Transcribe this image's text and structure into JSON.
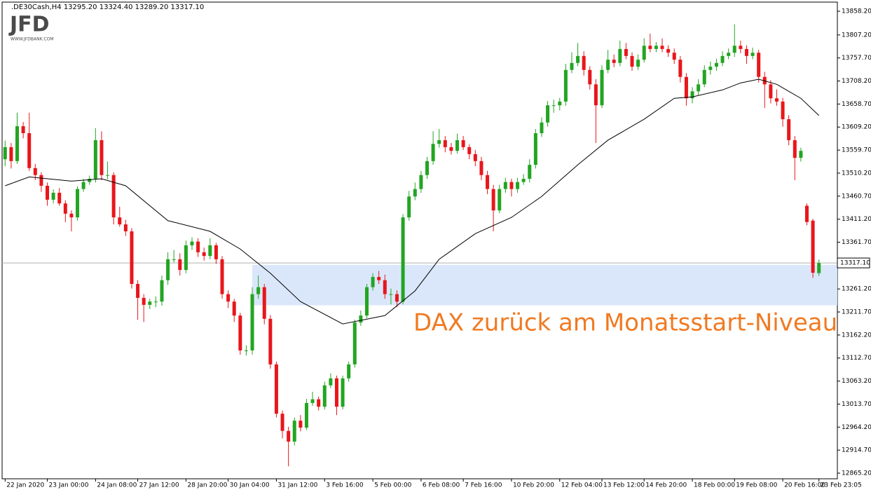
{
  "chart_data": {
    "type": "candlestick",
    "symbol_info": ".DE30Cash,H4  13295.20 13324.40 13289.20 13317.10",
    "logo": {
      "text": "JFD",
      "url": "WWW.JFDBANK.COM"
    },
    "annotation": "DAX zurück am Monatsstart-Niveau",
    "up_color": "#22a522",
    "down_color": "#e8161b",
    "ma_color": "#000000",
    "zone_color": "#d6e4fb",
    "annotation_color": "#f07a22",
    "grid": false,
    "ylim": [
      12853.1,
      13877.8
    ],
    "yticks": [
      {
        "value": 13858.2,
        "label": "13858.20"
      },
      {
        "value": 13807.2,
        "label": "13807.20"
      },
      {
        "value": 13757.7,
        "label": "13757.70"
      },
      {
        "value": 13708.2,
        "label": "13708.20"
      },
      {
        "value": 13658.7,
        "label": "13658.70"
      },
      {
        "value": 13609.2,
        "label": "13609.20"
      },
      {
        "value": 13559.7,
        "label": "13559.70"
      },
      {
        "value": 13510.2,
        "label": "13510.20"
      },
      {
        "value": 13460.7,
        "label": "13460.70"
      },
      {
        "value": 13411.2,
        "label": "13411.20"
      },
      {
        "value": 13361.7,
        "label": "13361.70"
      },
      {
        "value": 13261.2,
        "label": "13261.20"
      },
      {
        "value": 13211.7,
        "label": "13211.70"
      },
      {
        "value": 13162.2,
        "label": "13162.20"
      },
      {
        "value": 13112.7,
        "label": "13112.70"
      },
      {
        "value": 13063.2,
        "label": "13063.20"
      },
      {
        "value": 13013.7,
        "label": "13013.70"
      },
      {
        "value": 12964.2,
        "label": "12964.20"
      },
      {
        "value": 12914.7,
        "label": "12914.70"
      },
      {
        "value": 12865.2,
        "label": "12865.20"
      }
    ],
    "current_price": {
      "value": 13317.1,
      "label": "13317.10"
    },
    "xticks": [
      {
        "value": 0,
        "label": "22 Jan 2020"
      },
      {
        "value": 7,
        "label": "23 Jan 00:00"
      },
      {
        "value": 15,
        "label": "24 Jan 08:00"
      },
      {
        "value": 22,
        "label": "27 Jan 12:00"
      },
      {
        "value": 30,
        "label": "28 Jan 20:00"
      },
      {
        "value": 37,
        "label": "30 Jan 04:00"
      },
      {
        "value": 45,
        "label": "31 Jan 12:00"
      },
      {
        "value": 53,
        "label": "3 Feb 16:00"
      },
      {
        "value": 61,
        "label": "5 Feb 00:00"
      },
      {
        "value": 69,
        "label": "6 Feb 08:00"
      },
      {
        "value": 76,
        "label": "7 Feb 16:00"
      },
      {
        "value": 84,
        "label": "10 Feb 20:00"
      },
      {
        "value": 92,
        "label": "12 Feb 04:00"
      },
      {
        "value": 99,
        "label": "13 Feb 12:00"
      },
      {
        "value": 106,
        "label": "14 Feb 20:00"
      },
      {
        "value": 114,
        "label": "18 Feb 00:00"
      },
      {
        "value": 121,
        "label": "19 Feb 08:00"
      },
      {
        "value": 129,
        "label": "20 Feb 16:00"
      },
      {
        "value": 135,
        "label": "23 Feb 23:05"
      }
    ],
    "zone": {
      "ylim": [
        13226,
        13313
      ],
      "start": 41
    },
    "ohlc": [
      [
        13540,
        13580,
        13525,
        13566
      ],
      [
        13566,
        13575,
        13520,
        13536
      ],
      [
        13536,
        13640,
        13530,
        13611
      ],
      [
        13611,
        13620,
        13585,
        13596
      ],
      [
        13596,
        13640,
        13515,
        13521
      ],
      [
        13521,
        13530,
        13495,
        13506
      ],
      [
        13506,
        13512,
        13470,
        13483
      ],
      [
        13483,
        13490,
        13440,
        13453
      ],
      [
        13453,
        13475,
        13445,
        13468
      ],
      [
        13468,
        13478,
        13440,
        13445
      ],
      [
        13445,
        13452,
        13405,
        13423
      ],
      [
        13423,
        13430,
        13385,
        13415
      ],
      [
        13415,
        13482,
        13408,
        13476
      ],
      [
        13476,
        13498,
        13470,
        13491
      ],
      [
        13491,
        13505,
        13485,
        13498
      ],
      [
        13498,
        13607,
        13490,
        13581
      ],
      [
        13581,
        13600,
        13495,
        13506
      ],
      [
        13506,
        13535,
        13497,
        13506
      ],
      [
        13506,
        13512,
        13400,
        13415
      ],
      [
        13415,
        13438,
        13395,
        13400
      ],
      [
        13400,
        13410,
        13375,
        13385
      ],
      [
        13385,
        13392,
        13262,
        13272
      ],
      [
        13272,
        13280,
        13195,
        13242
      ],
      [
        13242,
        13250,
        13190,
        13227
      ],
      [
        13227,
        13240,
        13218,
        13234
      ],
      [
        13234,
        13245,
        13222,
        13234
      ],
      [
        13234,
        13290,
        13225,
        13280
      ],
      [
        13280,
        13340,
        13270,
        13325
      ],
      [
        13325,
        13345,
        13318,
        13325
      ],
      [
        13325,
        13338,
        13290,
        13302
      ],
      [
        13302,
        13365,
        13295,
        13355
      ],
      [
        13355,
        13372,
        13345,
        13363
      ],
      [
        13363,
        13370,
        13330,
        13340
      ],
      [
        13340,
        13350,
        13322,
        13332
      ],
      [
        13332,
        13370,
        13325,
        13355
      ],
      [
        13355,
        13360,
        13315,
        13325
      ],
      [
        13325,
        13332,
        13240,
        13250
      ],
      [
        13250,
        13258,
        13220,
        13234
      ],
      [
        13234,
        13240,
        13190,
        13204
      ],
      [
        13204,
        13210,
        13120,
        13129
      ],
      [
        13129,
        13140,
        13118,
        13129
      ],
      [
        13129,
        13265,
        13120,
        13250
      ],
      [
        13250,
        13290,
        13240,
        13265
      ],
      [
        13265,
        13272,
        13185,
        13197
      ],
      [
        13197,
        13205,
        13090,
        13099
      ],
      [
        13099,
        13105,
        12985,
        12993
      ],
      [
        12993,
        13000,
        12940,
        12956
      ],
      [
        12956,
        12965,
        12880,
        12933
      ],
      [
        12933,
        12985,
        12925,
        12978
      ],
      [
        12978,
        12990,
        12955,
        12963
      ],
      [
        12963,
        13025,
        12958,
        13016
      ],
      [
        13016,
        13040,
        13010,
        13024
      ],
      [
        13024,
        13030,
        13000,
        13008
      ],
      [
        13008,
        13062,
        13002,
        13054
      ],
      [
        13054,
        13080,
        13048,
        13069
      ],
      [
        13069,
        13075,
        12990,
        13008
      ],
      [
        13008,
        13075,
        13002,
        13069
      ],
      [
        13069,
        13105,
        13062,
        13099
      ],
      [
        13099,
        13195,
        13092,
        13189
      ],
      [
        13189,
        13215,
        13182,
        13204
      ],
      [
        13204,
        13272,
        13198,
        13265
      ],
      [
        13265,
        13295,
        13258,
        13287
      ],
      [
        13287,
        13300,
        13272,
        13280
      ],
      [
        13280,
        13292,
        13240,
        13250
      ],
      [
        13250,
        13262,
        13228,
        13250
      ],
      [
        13250,
        13258,
        13222,
        13234
      ],
      [
        13234,
        13422,
        13228,
        13415
      ],
      [
        13415,
        13472,
        13408,
        13460
      ],
      [
        13460,
        13490,
        13452,
        13476
      ],
      [
        13476,
        13515,
        13468,
        13506
      ],
      [
        13506,
        13545,
        13498,
        13536
      ],
      [
        13536,
        13600,
        13528,
        13573
      ],
      [
        13573,
        13605,
        13565,
        13581
      ],
      [
        13581,
        13590,
        13555,
        13566
      ],
      [
        13566,
        13575,
        13550,
        13558
      ],
      [
        13558,
        13595,
        13552,
        13581
      ],
      [
        13581,
        13590,
        13560,
        13566
      ],
      [
        13566,
        13572,
        13540,
        13551
      ],
      [
        13551,
        13560,
        13525,
        13536
      ],
      [
        13536,
        13545,
        13495,
        13506
      ],
      [
        13506,
        13515,
        13465,
        13476
      ],
      [
        13476,
        13485,
        13385,
        13430
      ],
      [
        13430,
        13485,
        13424,
        13476
      ],
      [
        13476,
        13500,
        13468,
        13491
      ],
      [
        13491,
        13498,
        13460,
        13476
      ],
      [
        13476,
        13500,
        13468,
        13491
      ],
      [
        13491,
        13508,
        13485,
        13498
      ],
      [
        13498,
        13540,
        13490,
        13528
      ],
      [
        13528,
        13605,
        13520,
        13596
      ],
      [
        13596,
        13630,
        13588,
        13619
      ],
      [
        13619,
        13665,
        13610,
        13656
      ],
      [
        13656,
        13668,
        13640,
        13656
      ],
      [
        13656,
        13672,
        13645,
        13664
      ],
      [
        13664,
        13745,
        13655,
        13732
      ],
      [
        13732,
        13770,
        13725,
        13747
      ],
      [
        13747,
        13790,
        13740,
        13762
      ],
      [
        13762,
        13772,
        13720,
        13732
      ],
      [
        13732,
        13740,
        13690,
        13701
      ],
      [
        13701,
        13712,
        13575,
        13656
      ],
      [
        13656,
        13742,
        13650,
        13732
      ],
      [
        13732,
        13775,
        13725,
        13754
      ],
      [
        13754,
        13765,
        13738,
        13747
      ],
      [
        13747,
        13795,
        13740,
        13777
      ],
      [
        13777,
        13790,
        13755,
        13762
      ],
      [
        13762,
        13770,
        13730,
        13739
      ],
      [
        13739,
        13765,
        13732,
        13754
      ],
      [
        13754,
        13800,
        13748,
        13784
      ],
      [
        13784,
        13810,
        13770,
        13777
      ],
      [
        13777,
        13792,
        13770,
        13784
      ],
      [
        13784,
        13800,
        13770,
        13777
      ],
      [
        13777,
        13785,
        13760,
        13769
      ],
      [
        13769,
        13778,
        13745,
        13754
      ],
      [
        13754,
        13762,
        13705,
        13717
      ],
      [
        13717,
        13725,
        13655,
        13671
      ],
      [
        13671,
        13695,
        13660,
        13686
      ],
      [
        13686,
        13712,
        13678,
        13701
      ],
      [
        13701,
        13742,
        13695,
        13732
      ],
      [
        13732,
        13750,
        13722,
        13739
      ],
      [
        13739,
        13756,
        13730,
        13747
      ],
      [
        13747,
        13772,
        13740,
        13762
      ],
      [
        13762,
        13778,
        13755,
        13769
      ],
      [
        13769,
        13830,
        13760,
        13784
      ],
      [
        13784,
        13795,
        13768,
        13777
      ],
      [
        13777,
        13785,
        13745,
        13762
      ],
      [
        13762,
        13780,
        13755,
        13769
      ],
      [
        13769,
        13775,
        13705,
        13717
      ],
      [
        13717,
        13728,
        13650,
        13701
      ],
      [
        13701,
        13710,
        13660,
        13671
      ],
      [
        13671,
        13690,
        13655,
        13664
      ],
      [
        13664,
        13672,
        13610,
        13626
      ],
      [
        13626,
        13635,
        13570,
        13581
      ],
      [
        13581,
        13590,
        13495,
        13543
      ],
      [
        13543,
        13565,
        13535,
        13558
      ],
      [
        13440,
        13445,
        13398,
        13405
      ],
      [
        13408,
        13412,
        13285,
        13296
      ],
      [
        13295.2,
        13324.4,
        13289.2,
        13317.1
      ]
    ],
    "ma": {
      "x": [
        0,
        4,
        11,
        16,
        20,
        27,
        34,
        39,
        44,
        49,
        56,
        63,
        68,
        72,
        78,
        84,
        89,
        95,
        100,
        106,
        111,
        114,
        119,
        122,
        125,
        128,
        132,
        135
      ],
      "values": [
        13483,
        13502,
        13493,
        13498,
        13483,
        13408,
        13385,
        13347,
        13295,
        13234,
        13186,
        13204,
        13257,
        13325,
        13380,
        13415,
        13460,
        13528,
        13581,
        13626,
        13671,
        13674,
        13689,
        13704,
        13712,
        13701,
        13671,
        13634
      ]
    }
  }
}
